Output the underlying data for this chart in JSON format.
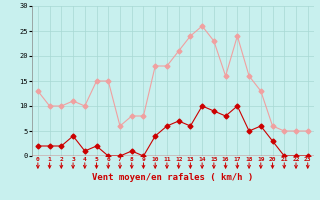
{
  "x": [
    0,
    1,
    2,
    3,
    4,
    5,
    6,
    7,
    8,
    9,
    10,
    11,
    12,
    13,
    14,
    15,
    16,
    17,
    18,
    19,
    20,
    21,
    22,
    23
  ],
  "wind_avg": [
    2,
    2,
    2,
    4,
    1,
    2,
    0,
    0,
    1,
    0,
    4,
    6,
    7,
    6,
    10,
    9,
    8,
    10,
    5,
    6,
    3,
    0,
    0,
    0
  ],
  "wind_gust": [
    13,
    10,
    10,
    11,
    10,
    15,
    15,
    6,
    8,
    8,
    18,
    18,
    21,
    24,
    26,
    23,
    16,
    24,
    16,
    13,
    6,
    5,
    5,
    5
  ],
  "avg_color": "#cc0000",
  "gust_color": "#f0a0a0",
  "bg_color": "#c8f0ee",
  "grid_color": "#a8d8d4",
  "xlabel": "Vent moyen/en rafales ( km/h )",
  "xlabel_color": "#cc0000",
  "ylim": [
    0,
    30
  ],
  "yticks": [
    0,
    5,
    10,
    15,
    20,
    25,
    30
  ],
  "xtick_labels": [
    "0",
    "1",
    "2",
    "3",
    "4",
    "5",
    "6",
    "7",
    "8",
    "9",
    "10",
    "11",
    "12",
    "13",
    "14",
    "15",
    "16",
    "17",
    "18",
    "19",
    "20",
    "21",
    "2223"
  ],
  "xtick_pos": [
    0,
    1,
    2,
    3,
    4,
    5,
    6,
    7,
    8,
    9,
    10,
    11,
    12,
    13,
    14,
    15,
    16,
    17,
    18,
    19,
    20,
    21,
    22
  ],
  "marker": "D",
  "markersize": 2.5,
  "linewidth": 0.8
}
